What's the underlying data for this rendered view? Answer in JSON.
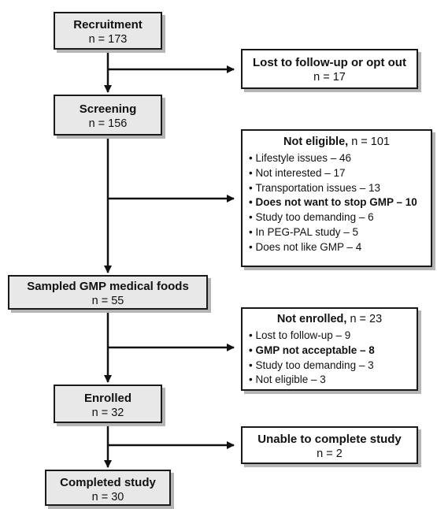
{
  "main_boxes": [
    {
      "id": "recruitment",
      "title": "Recruitment",
      "count": "n = 173"
    },
    {
      "id": "screening",
      "title": "Screening",
      "count": "n = 156"
    },
    {
      "id": "sampled",
      "title": "Sampled GMP medical foods",
      "count": "n = 55"
    },
    {
      "id": "enrolled",
      "title": "Enrolled",
      "count": "n = 32"
    },
    {
      "id": "completed",
      "title": "Completed study",
      "count": "n = 30"
    }
  ],
  "side_boxes": {
    "lost": {
      "title": "Lost to follow-up or opt out",
      "count": "n = 17"
    },
    "not_eligible": {
      "title": "Not eligible,",
      "count": " n = 101",
      "reasons": [
        {
          "text": "Lifestyle issues – 46",
          "bold": false
        },
        {
          "text": "Not interested – 17",
          "bold": false
        },
        {
          "text": "Transportation issues – 13",
          "bold": false
        },
        {
          "text": "Does not want to stop GMP – 10",
          "bold": true
        },
        {
          "text": "Study too demanding – 6",
          "bold": false
        },
        {
          "text": "In PEG-PAL study – 5",
          "bold": false
        },
        {
          "text": "Does not like GMP – 4",
          "bold": false
        }
      ]
    },
    "not_enrolled": {
      "title": "Not enrolled,",
      "count": " n = 23",
      "reasons": [
        {
          "text": "Lost to follow-up – 9",
          "bold": false
        },
        {
          "text": "GMP not acceptable – 8",
          "bold": true
        },
        {
          "text": "Study too demanding – 3",
          "bold": false
        },
        {
          "text": "Not eligible – 3",
          "bold": false
        }
      ]
    },
    "unable": {
      "title": "Unable to complete study",
      "count": "n = 2"
    }
  }
}
